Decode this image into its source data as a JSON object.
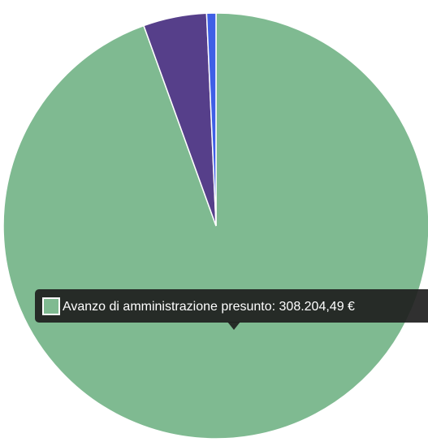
{
  "chart_data": {
    "type": "pie",
    "categories": [
      "Avanzo di amministrazione presunto",
      null,
      null
    ],
    "values": [
      308204.49,
      15700,
      2300
    ],
    "value_labels": [
      "308.204,49 €",
      null,
      null
    ],
    "colors": [
      "#7fba91",
      "#563f8a",
      "#3f5fe6"
    ],
    "tooltip_index": 0
  }
}
